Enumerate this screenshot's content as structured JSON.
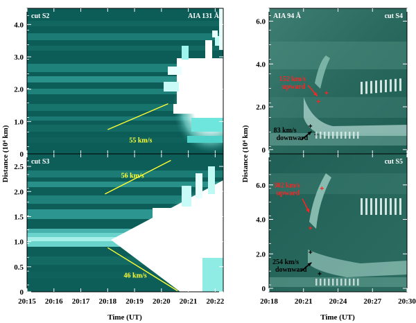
{
  "figure": {
    "left_x_label": "Time (UT)",
    "right_x_label": "Time (UT)",
    "left_y_label": "Distance (10⁴ km)",
    "right_y_label": "Distance (10⁴ km)"
  },
  "colors": {
    "background_dark": "#0b5a55",
    "stripe": "#1c7b75",
    "bright": "#ffffff",
    "annotation_yellow": "#ffff33",
    "annotation_red": "#ff2222",
    "annotation_black": "#000000"
  },
  "chart_data": [
    {
      "type": "heatmap",
      "id": "panel-s2",
      "label_left": "cut S2",
      "label_right": "AIA 131 Å",
      "x_ticks": [
        "20:15",
        "20:16",
        "20:17",
        "20:18",
        "20:19",
        "20:20",
        "20:21",
        "20:22"
      ],
      "xlim_minutes": [
        0,
        7.3
      ],
      "y_ticks": [
        "0",
        "1.0",
        "2.0",
        "3.0",
        "4.0"
      ],
      "ylim": [
        0,
        4.5
      ],
      "annotations": [
        {
          "text": "55 km/s",
          "color": "yellow",
          "line": {
            "t0": 3.0,
            "d0": 0.75,
            "t1": 5.25,
            "d1": 1.55
          },
          "label_t": 3.8,
          "label_d": 0.35
        }
      ]
    },
    {
      "type": "heatmap",
      "id": "panel-s3",
      "label_left": "cut S3",
      "x_ticks": [
        "20:15",
        "20:16",
        "20:17",
        "20:18",
        "20:19",
        "20:20",
        "20:21",
        "20:22"
      ],
      "xlim_minutes": [
        0,
        7.3
      ],
      "y_ticks": [
        "0",
        "0.5",
        "1.0",
        "1.5",
        "2.0",
        "2.5"
      ],
      "ylim": [
        0,
        2.75
      ],
      "annotations": [
        {
          "text": "56 km/s",
          "color": "yellow",
          "line": {
            "t0": 2.9,
            "d0": 1.95,
            "t1": 5.35,
            "d1": 2.62
          },
          "label_t": 3.5,
          "label_d": 2.27
        },
        {
          "text": "46 km/s",
          "color": "yellow",
          "line": {
            "t0": 3.0,
            "d0": 0.88,
            "t1": 5.6,
            "d1": 0.02
          },
          "label_t": 3.6,
          "label_d": 0.28
        }
      ]
    },
    {
      "type": "heatmap",
      "id": "panel-s4",
      "label_left": "AIA 94 Å",
      "label_right": "cut S4",
      "x_ticks": [
        "20:18",
        "20:21",
        "20:24",
        "20:27",
        "20:30"
      ],
      "xlim_minutes": [
        0,
        12
      ],
      "y_ticks": [
        "0",
        "2.0",
        "4.0",
        "6.0"
      ],
      "ylim": [
        -0.2,
        6.6
      ],
      "annotations": [
        {
          "text": "152 km/s",
          "text2": "upward",
          "color": "red",
          "label_t": 0.9,
          "label_d": 3.2,
          "arrow": {
            "t0": 3.4,
            "d0": 3.0,
            "t1": 4.2,
            "d1": 2.5
          }
        },
        {
          "text": "83 km/s",
          "text2": "downward",
          "color": "black",
          "label_t": 0.4,
          "label_d": 0.8,
          "arrow": {
            "t0": 2.8,
            "d0": 0.45,
            "t1": 3.7,
            "d1": 0.85
          }
        }
      ],
      "markers": [
        {
          "t": 4.3,
          "d": 2.25,
          "color": "red"
        },
        {
          "t": 5.0,
          "d": 2.65,
          "color": "red"
        },
        {
          "t": 3.6,
          "d": 1.1,
          "color": "black"
        },
        {
          "t": 4.1,
          "d": 0.7,
          "color": "black"
        }
      ]
    },
    {
      "type": "heatmap",
      "id": "panel-s5",
      "label_right": "cut S5",
      "x_ticks": [
        "20:18",
        "20:21",
        "20:24",
        "20:27",
        "20:30"
      ],
      "xlim_minutes": [
        0,
        12
      ],
      "y_ticks": [
        "0",
        "2.0",
        "4.0",
        "6.0"
      ],
      "ylim": [
        -0.2,
        7.8
      ],
      "annotations": [
        {
          "text": "302 km/s",
          "text2": "upward",
          "color": "red",
          "label_t": 0.4,
          "label_d": 5.85,
          "arrow": {
            "t0": 2.9,
            "d0": 5.2,
            "t1": 3.5,
            "d1": 4.4
          }
        },
        {
          "text": "254 km/s",
          "text2": "downward",
          "color": "black",
          "label_t": 0.3,
          "label_d": 1.4,
          "arrow": {
            "t0": 2.8,
            "d0": 1.0,
            "t1": 3.7,
            "d1": 1.5
          }
        }
      ],
      "markers": [
        {
          "t": 3.6,
          "d": 3.5,
          "color": "red"
        },
        {
          "t": 4.6,
          "d": 5.8,
          "color": "red"
        },
        {
          "t": 3.6,
          "d": 2.1,
          "color": "black"
        },
        {
          "t": 4.4,
          "d": 0.85,
          "color": "black"
        }
      ]
    }
  ]
}
